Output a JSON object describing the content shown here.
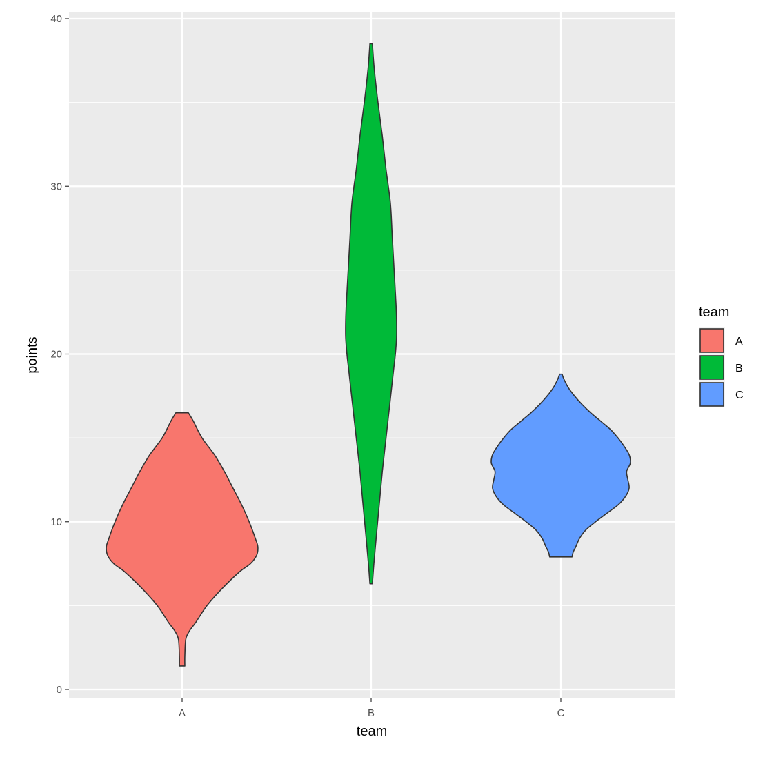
{
  "chart_data": {
    "type": "violin",
    "title": "",
    "xlabel": "team",
    "ylabel": "points",
    "categories": [
      "A",
      "B",
      "C"
    ],
    "ylim": [
      0,
      40
    ],
    "y_ticks": [
      0,
      10,
      20,
      30,
      40
    ],
    "grid": true,
    "panel_background": "#ebebeb",
    "grid_color": "#ffffff",
    "legend": {
      "title": "team",
      "position": "right",
      "entries": [
        "A",
        "B",
        "C"
      ]
    },
    "series": [
      {
        "category": "A",
        "color": "#f8766d",
        "min": 1.4,
        "max": 16.5,
        "profile": [
          [
            16.5,
            0.5
          ],
          [
            16.0,
            0.9
          ],
          [
            15.0,
            1.6
          ],
          [
            14.0,
            2.6
          ],
          [
            13.0,
            3.4
          ],
          [
            12.0,
            4.1
          ],
          [
            11.0,
            4.8
          ],
          [
            10.0,
            5.4
          ],
          [
            9.0,
            5.9
          ],
          [
            8.5,
            6.1
          ],
          [
            8.0,
            6.0
          ],
          [
            7.5,
            5.5
          ],
          [
            7.0,
            4.6
          ],
          [
            6.0,
            3.2
          ],
          [
            5.0,
            2.0
          ],
          [
            4.0,
            1.1
          ],
          [
            3.5,
            0.6
          ],
          [
            3.0,
            0.3
          ],
          [
            2.0,
            0.22
          ],
          [
            1.4,
            0.22
          ]
        ]
      },
      {
        "category": "B",
        "color": "#00ba38",
        "min": 6.3,
        "max": 38.5,
        "profile": [
          [
            38.5,
            0.1
          ],
          [
            37.0,
            0.25
          ],
          [
            35.0,
            0.55
          ],
          [
            33.0,
            0.9
          ],
          [
            31.0,
            1.2
          ],
          [
            29.0,
            1.55
          ],
          [
            27.0,
            1.7
          ],
          [
            25.0,
            1.85
          ],
          [
            23.0,
            2.0
          ],
          [
            22.0,
            2.05
          ],
          [
            21.0,
            2.05
          ],
          [
            20.0,
            1.95
          ],
          [
            19.0,
            1.8
          ],
          [
            17.0,
            1.5
          ],
          [
            15.0,
            1.2
          ],
          [
            13.0,
            0.9
          ],
          [
            11.0,
            0.65
          ],
          [
            9.0,
            0.4
          ],
          [
            7.5,
            0.22
          ],
          [
            6.3,
            0.1
          ]
        ]
      },
      {
        "category": "C",
        "color": "#619cff",
        "min": 7.9,
        "max": 18.8,
        "profile": [
          [
            18.8,
            0.1
          ],
          [
            18.5,
            0.25
          ],
          [
            18.0,
            0.6
          ],
          [
            17.5,
            1.1
          ],
          [
            17.0,
            1.7
          ],
          [
            16.5,
            2.4
          ],
          [
            16.0,
            3.2
          ],
          [
            15.5,
            4.0
          ],
          [
            15.0,
            4.6
          ],
          [
            14.5,
            5.1
          ],
          [
            14.0,
            5.5
          ],
          [
            13.5,
            5.6
          ],
          [
            13.0,
            5.3
          ],
          [
            12.5,
            5.4
          ],
          [
            12.0,
            5.5
          ],
          [
            11.5,
            5.2
          ],
          [
            11.0,
            4.6
          ],
          [
            10.5,
            3.7
          ],
          [
            10.0,
            2.8
          ],
          [
            9.5,
            2.0
          ],
          [
            9.0,
            1.5
          ],
          [
            8.5,
            1.2
          ],
          [
            8.2,
            1.0
          ],
          [
            7.9,
            0.9
          ]
        ]
      }
    ]
  }
}
